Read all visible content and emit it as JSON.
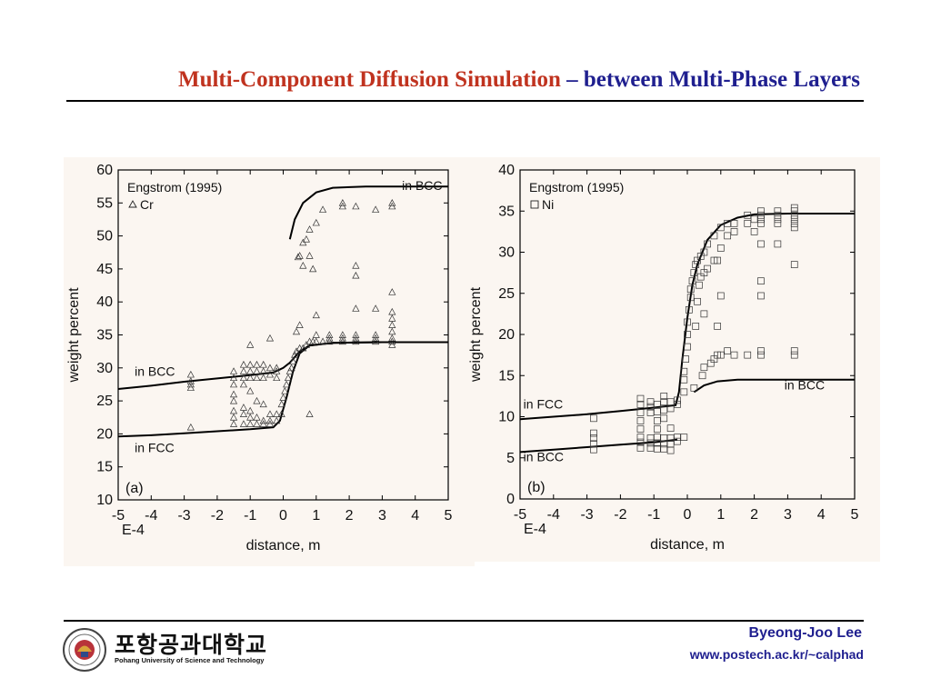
{
  "slide": {
    "title_part1": "Multi-Component Diffusion Simulation",
    "title_part2": " – between Multi-Phase Layers",
    "university_korean": "포항공과대학교",
    "university_english": "Pohang University of Science and Technology",
    "author": "Byeong-Joo Lee",
    "url": "www.postech.ac.kr/~calphad",
    "colors": {
      "title_red": "#c0331f",
      "title_blue": "#1f1f8f",
      "panel_bg": "#fbf6f1"
    },
    "logo_icon": "university-seal-icon"
  },
  "chart_data": [
    {
      "type": "scatter",
      "panel_label": "(a)",
      "xlabel": "distance, m",
      "ylabel": "weight percent",
      "x_multiplier_label": "E-4",
      "xlim": [
        -5,
        5
      ],
      "ylim": [
        10,
        60
      ],
      "x_ticks": [
        -5,
        -4,
        -3,
        -2,
        -1,
        0,
        1,
        2,
        3,
        4,
        5
      ],
      "y_ticks": [
        10,
        15,
        20,
        25,
        30,
        35,
        40,
        45,
        50,
        55,
        60
      ],
      "legend": {
        "source": "Engstrom (1995)",
        "series": "Cr",
        "marker": "triangle",
        "placement": "top-left"
      },
      "curve_labels": [
        {
          "text": "in BCC",
          "x": 3.6,
          "y": 57
        },
        {
          "text": "in BCC",
          "x": -4.5,
          "y": 28.8
        },
        {
          "text": "in FCC",
          "x": -4.5,
          "y": 17.2
        }
      ],
      "curves": [
        {
          "name": "in BCC",
          "points": [
            [
              -5,
              26.8
            ],
            [
              -4,
              27.3
            ],
            [
              -3,
              27.9
            ],
            [
              -2,
              28.4
            ],
            [
              -1,
              28.9
            ],
            [
              -0.3,
              29.3
            ],
            [
              0,
              30
            ],
            [
              0.2,
              30.8
            ],
            [
              0.5,
              32.5
            ],
            [
              0.8,
              33.4
            ],
            [
              1.5,
              33.8
            ],
            [
              3,
              33.9
            ],
            [
              5,
              33.9
            ]
          ]
        },
        {
          "name": "in FCC",
          "points": [
            [
              -5,
              19.6
            ],
            [
              -4,
              19.8
            ],
            [
              -3,
              20.1
            ],
            [
              -2,
              20.4
            ],
            [
              -1,
              20.7
            ],
            [
              -0.3,
              21
            ],
            [
              -0.1,
              22
            ],
            [
              0.1,
              25.5
            ],
            [
              0.3,
              29.5
            ],
            [
              0.5,
              32.2
            ],
            [
              0.8,
              33.4
            ],
            [
              1.5,
              33.8
            ],
            [
              3,
              33.9
            ],
            [
              5,
              33.9
            ]
          ]
        },
        {
          "name": "in BCC",
          "points": [
            [
              0.2,
              49.5
            ],
            [
              0.35,
              52.5
            ],
            [
              0.6,
              55
            ],
            [
              1,
              56.6
            ],
            [
              1.5,
              57.3
            ],
            [
              2.5,
              57.5
            ],
            [
              5,
              57.5
            ]
          ]
        }
      ],
      "points": [
        [
          -2.8,
          21
        ],
        [
          -2.8,
          27
        ],
        [
          -2.8,
          28
        ],
        [
          -2.8,
          29
        ],
        [
          -2.8,
          27.5
        ],
        [
          -1.5,
          21.5
        ],
        [
          -1.5,
          22.5
        ],
        [
          -1.5,
          23.5
        ],
        [
          -1.5,
          25
        ],
        [
          -1.5,
          26
        ],
        [
          -1.5,
          27.5
        ],
        [
          -1.5,
          28.5
        ],
        [
          -1.5,
          29.5
        ],
        [
          -1.2,
          21.5
        ],
        [
          -1.2,
          23
        ],
        [
          -1.2,
          24
        ],
        [
          -1.2,
          27.5
        ],
        [
          -1.2,
          28.5
        ],
        [
          -1.2,
          29.5
        ],
        [
          -1.2,
          30.5
        ],
        [
          -1,
          21.5
        ],
        [
          -1,
          22.5
        ],
        [
          -1,
          23.5
        ],
        [
          -1,
          26.5
        ],
        [
          -1,
          28.5
        ],
        [
          -1,
          29.5
        ],
        [
          -1,
          30.5
        ],
        [
          -1,
          33.5
        ],
        [
          -0.8,
          21.5
        ],
        [
          -0.8,
          22.5
        ],
        [
          -0.8,
          25
        ],
        [
          -0.8,
          28.5
        ],
        [
          -0.8,
          29.5
        ],
        [
          -0.8,
          30.5
        ],
        [
          -0.6,
          21.5
        ],
        [
          -0.6,
          22
        ],
        [
          -0.6,
          24.5
        ],
        [
          -0.6,
          28.5
        ],
        [
          -0.6,
          29.5
        ],
        [
          -0.6,
          30.5
        ],
        [
          -0.4,
          21.5
        ],
        [
          -0.4,
          22
        ],
        [
          -0.4,
          23
        ],
        [
          -0.4,
          29
        ],
        [
          -0.4,
          30
        ],
        [
          -0.4,
          34.5
        ],
        [
          -0.2,
          22
        ],
        [
          -0.2,
          23
        ],
        [
          -0.2,
          28.5
        ],
        [
          -0.2,
          29.5
        ],
        [
          -0.2,
          30
        ],
        [
          -0.05,
          23
        ],
        [
          -0.05,
          24.5
        ],
        [
          0,
          25.5
        ],
        [
          0.05,
          26.5
        ],
        [
          0.1,
          27.5
        ],
        [
          0.15,
          28.5
        ],
        [
          0.2,
          29.5
        ],
        [
          0.25,
          30
        ],
        [
          0.3,
          31
        ],
        [
          0.35,
          32
        ],
        [
          0.4,
          32.5
        ],
        [
          0.4,
          35.5
        ],
        [
          0.45,
          46.8
        ],
        [
          0.5,
          33
        ],
        [
          0.5,
          36.5
        ],
        [
          0.5,
          47
        ],
        [
          0.6,
          33
        ],
        [
          0.6,
          45.5
        ],
        [
          0.6,
          49
        ],
        [
          0.7,
          33.5
        ],
        [
          0.7,
          49.5
        ],
        [
          0.8,
          23
        ],
        [
          0.8,
          34
        ],
        [
          0.8,
          47
        ],
        [
          0.8,
          51
        ],
        [
          0.9,
          34
        ],
        [
          0.9,
          45
        ],
        [
          1,
          34
        ],
        [
          1,
          35
        ],
        [
          1,
          38
        ],
        [
          1,
          52
        ],
        [
          1.2,
          34
        ],
        [
          1.2,
          54
        ],
        [
          1.4,
          34
        ],
        [
          1.4,
          34.5
        ],
        [
          1.4,
          35
        ],
        [
          1.8,
          34
        ],
        [
          1.8,
          34.5
        ],
        [
          1.8,
          35
        ],
        [
          1.8,
          54.5
        ],
        [
          1.8,
          55
        ],
        [
          2.2,
          34
        ],
        [
          2.2,
          34.5
        ],
        [
          2.2,
          35
        ],
        [
          2.2,
          39
        ],
        [
          2.2,
          44
        ],
        [
          2.2,
          45.5
        ],
        [
          2.2,
          54.5
        ],
        [
          2.8,
          34
        ],
        [
          2.8,
          34.5
        ],
        [
          2.8,
          35
        ],
        [
          2.8,
          39
        ],
        [
          2.8,
          54
        ],
        [
          3.3,
          33.5
        ],
        [
          3.3,
          34
        ],
        [
          3.3,
          34.5
        ],
        [
          3.3,
          35.5
        ],
        [
          3.3,
          36.5
        ],
        [
          3.3,
          37.5
        ],
        [
          3.3,
          38.5
        ],
        [
          3.3,
          41.5
        ],
        [
          3.3,
          54.5
        ],
        [
          3.3,
          55
        ]
      ]
    },
    {
      "type": "scatter",
      "panel_label": "(b)",
      "xlabel": "distance, m",
      "ylabel": "weight percent",
      "x_multiplier_label": "E-4",
      "xlim": [
        -5,
        5
      ],
      "ylim": [
        0,
        40
      ],
      "x_ticks": [
        -5,
        -4,
        -3,
        -2,
        -1,
        0,
        1,
        2,
        3,
        4,
        5
      ],
      "y_ticks": [
        0,
        5,
        10,
        15,
        20,
        25,
        30,
        35,
        40
      ],
      "legend": {
        "source": "Engstrom (1995)",
        "series": "Ni",
        "marker": "square",
        "placement": "top-left"
      },
      "curve_labels": [
        {
          "text": "in FCC",
          "x": -4.9,
          "y": 11
        },
        {
          "text": "in BCC",
          "x": -4.9,
          "y": 4.6
        },
        {
          "text": "in BCC",
          "x": 2.9,
          "y": 13.3
        }
      ],
      "curves": [
        {
          "name": "in FCC",
          "points": [
            [
              -5,
              9.7
            ],
            [
              -4,
              10
            ],
            [
              -3,
              10.3
            ],
            [
              -2,
              10.7
            ],
            [
              -1,
              11.1
            ],
            [
              -0.35,
              11.4
            ],
            [
              -0.25,
              13
            ],
            [
              -0.15,
              17
            ],
            [
              0,
              22
            ],
            [
              0.15,
              26
            ],
            [
              0.3,
              28.5
            ],
            [
              0.6,
              31.5
            ],
            [
              1,
              33.3
            ],
            [
              1.5,
              34.2
            ],
            [
              2,
              34.6
            ],
            [
              3,
              34.7
            ],
            [
              5,
              34.7
            ]
          ]
        },
        {
          "name": "in BCC",
          "points": [
            [
              -5,
              5.7
            ],
            [
              -4,
              6
            ],
            [
              -3,
              6.3
            ],
            [
              -2,
              6.6
            ],
            [
              -1,
              6.9
            ],
            [
              -0.3,
              7.2
            ]
          ]
        },
        {
          "name": "in BCC",
          "points": [
            [
              0.2,
              13
            ],
            [
              0.5,
              13.8
            ],
            [
              0.9,
              14.3
            ],
            [
              1.5,
              14.5
            ],
            [
              3,
              14.5
            ],
            [
              5,
              14.5
            ]
          ]
        }
      ],
      "points": [
        [
          -2.8,
          6
        ],
        [
          -2.8,
          6.7
        ],
        [
          -2.8,
          7.4
        ],
        [
          -2.8,
          8
        ],
        [
          -2.8,
          9.8
        ],
        [
          -1.4,
          6.2
        ],
        [
          -1.4,
          6.9
        ],
        [
          -1.4,
          7.5
        ],
        [
          -1.4,
          8.5
        ],
        [
          -1.4,
          9.5
        ],
        [
          -1.4,
          10.5
        ],
        [
          -1.4,
          11.5
        ],
        [
          -1.4,
          12.2
        ],
        [
          -1.1,
          6.2
        ],
        [
          -1.1,
          6.8
        ],
        [
          -1.1,
          7.4
        ],
        [
          -1.1,
          10.5
        ],
        [
          -1.1,
          11.2
        ],
        [
          -1.1,
          11.8
        ],
        [
          -0.9,
          6.1
        ],
        [
          -0.9,
          6.8
        ],
        [
          -0.9,
          7.5
        ],
        [
          -0.9,
          8.5
        ],
        [
          -0.9,
          9.5
        ],
        [
          -0.9,
          10.6
        ],
        [
          -0.9,
          11.5
        ],
        [
          -0.7,
          6.1
        ],
        [
          -0.7,
          6.7
        ],
        [
          -0.7,
          7.4
        ],
        [
          -0.7,
          9.8
        ],
        [
          -0.7,
          10.8
        ],
        [
          -0.7,
          11.8
        ],
        [
          -0.7,
          12.5
        ],
        [
          -0.5,
          5.9
        ],
        [
          -0.5,
          6.7
        ],
        [
          -0.5,
          7.4
        ],
        [
          -0.5,
          8.6
        ],
        [
          -0.5,
          11
        ],
        [
          -0.5,
          11.8
        ],
        [
          -0.3,
          7
        ],
        [
          -0.3,
          7.5
        ],
        [
          -0.3,
          11.5
        ],
        [
          -0.3,
          12
        ],
        [
          -0.1,
          7.5
        ],
        [
          -0.1,
          13
        ],
        [
          -0.1,
          14.5
        ],
        [
          -0.1,
          15.5
        ],
        [
          -0.05,
          17
        ],
        [
          0,
          18.5
        ],
        [
          0,
          20
        ],
        [
          0,
          21.5
        ],
        [
          0.05,
          23
        ],
        [
          0.1,
          24.5
        ],
        [
          0.1,
          25.5
        ],
        [
          0.15,
          26.5
        ],
        [
          0.2,
          27.5
        ],
        [
          0.25,
          28.5
        ],
        [
          0.3,
          29
        ],
        [
          0.2,
          13.5
        ],
        [
          0.25,
          21
        ],
        [
          0.3,
          24
        ],
        [
          0.35,
          26
        ],
        [
          0.4,
          27
        ],
        [
          0.4,
          29.5
        ],
        [
          0.45,
          15
        ],
        [
          0.5,
          16
        ],
        [
          0.5,
          22.5
        ],
        [
          0.5,
          27.5
        ],
        [
          0.5,
          30
        ],
        [
          0.6,
          28
        ],
        [
          0.6,
          31
        ],
        [
          0.7,
          16.5
        ],
        [
          0.8,
          17
        ],
        [
          0.8,
          29
        ],
        [
          0.8,
          32
        ],
        [
          0.9,
          17.5
        ],
        [
          0.9,
          21
        ],
        [
          0.9,
          29
        ],
        [
          1,
          17.5
        ],
        [
          1,
          24.7
        ],
        [
          1,
          30.5
        ],
        [
          1,
          33
        ],
        [
          1.2,
          18
        ],
        [
          1.2,
          32
        ],
        [
          1.2,
          33.5
        ],
        [
          1.4,
          17.5
        ],
        [
          1.4,
          32.5
        ],
        [
          1.4,
          33.5
        ],
        [
          1.8,
          17.5
        ],
        [
          1.8,
          33.5
        ],
        [
          1.8,
          34.5
        ],
        [
          2,
          32.5
        ],
        [
          2,
          34
        ],
        [
          2.2,
          17.5
        ],
        [
          2.2,
          18
        ],
        [
          2.2,
          24.7
        ],
        [
          2.2,
          26.5
        ],
        [
          2.2,
          31
        ],
        [
          2.2,
          33.5
        ],
        [
          2.2,
          34
        ],
        [
          2.2,
          34.5
        ],
        [
          2.2,
          35
        ],
        [
          2.7,
          31
        ],
        [
          2.7,
          33.5
        ],
        [
          2.7,
          34
        ],
        [
          2.7,
          34.5
        ],
        [
          2.7,
          35
        ],
        [
          3.2,
          18
        ],
        [
          3.2,
          17.5
        ],
        [
          3.2,
          28.5
        ],
        [
          3.2,
          33
        ],
        [
          3.2,
          33.5
        ],
        [
          3.2,
          34
        ],
        [
          3.2,
          34.5
        ],
        [
          3.2,
          35
        ],
        [
          3.2,
          35.4
        ]
      ]
    }
  ]
}
